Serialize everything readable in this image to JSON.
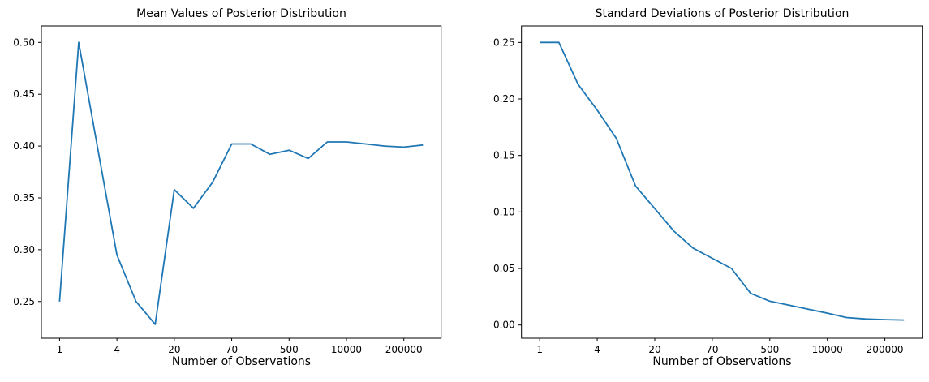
{
  "figure": {
    "background": "#ffffff",
    "line_color": "#1f77b4",
    "axis_color": "#000000"
  },
  "chart_data": [
    {
      "type": "line",
      "title": "Mean Values of Posterior Distribution",
      "xlabel": "Number of Observations",
      "ylabel": "",
      "grid": false,
      "legend": null,
      "n_points": 20,
      "xtick_labels": [
        "1",
        "4",
        "20",
        "70",
        "500",
        "10000",
        "200000"
      ],
      "xtick_indices": [
        0,
        3,
        6,
        9,
        12,
        15,
        18
      ],
      "x_observations_estimated": [
        1,
        2,
        3,
        4,
        7,
        10,
        20,
        30,
        50,
        70,
        100,
        300,
        500,
        1000,
        5000,
        10000,
        50000,
        100000,
        200000,
        500000
      ],
      "values": [
        0.25,
        0.5,
        0.397,
        0.295,
        0.25,
        0.228,
        0.358,
        0.34,
        0.365,
        0.402,
        0.402,
        0.392,
        0.396,
        0.388,
        0.404,
        0.404,
        0.402,
        0.4,
        0.399,
        0.401
      ],
      "ytick_values": [
        0.25,
        0.3,
        0.35,
        0.4,
        0.45,
        0.5
      ],
      "ytick_labels": [
        "0.25",
        "0.30",
        "0.35",
        "0.40",
        "0.45",
        "0.50"
      ],
      "ylim": [
        0.2146,
        0.5159
      ]
    },
    {
      "type": "line",
      "title": "Standard Deviations of Posterior Distribution",
      "xlabel": "Number of Observations",
      "ylabel": "",
      "grid": false,
      "legend": null,
      "n_points": 20,
      "xtick_labels": [
        "1",
        "4",
        "20",
        "70",
        "500",
        "10000",
        "200000"
      ],
      "xtick_indices": [
        0,
        3,
        6,
        9,
        12,
        15,
        18
      ],
      "x_observations_estimated": [
        1,
        2,
        3,
        4,
        7,
        10,
        20,
        30,
        50,
        70,
        100,
        300,
        500,
        1000,
        5000,
        10000,
        50000,
        100000,
        200000,
        500000
      ],
      "values": [
        0.25,
        0.25,
        0.213,
        0.19,
        0.165,
        0.123,
        0.103,
        0.083,
        0.068,
        0.059,
        0.05,
        0.028,
        0.021,
        0.0175,
        0.014,
        0.0105,
        0.0066,
        0.0053,
        0.0047,
        0.0044
      ],
      "ytick_values": [
        0.0,
        0.05,
        0.1,
        0.15,
        0.2,
        0.25
      ],
      "ytick_labels": [
        "0.00",
        "0.05",
        "0.10",
        "0.15",
        "0.20",
        "0.25"
      ],
      "ylim": [
        -0.0117,
        0.2646
      ]
    }
  ]
}
